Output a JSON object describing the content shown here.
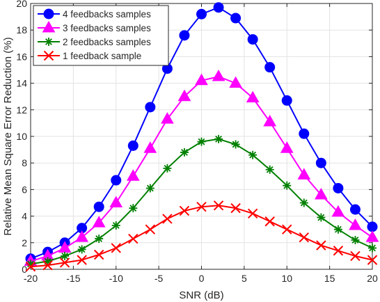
{
  "chart_data": {
    "type": "line",
    "title": "",
    "xlabel": "SNR (dB)",
    "ylabel": "Relative Mean Square Error Reduction (%)",
    "xlim": [
      -20,
      20
    ],
    "ylim": [
      0,
      20
    ],
    "xticks": [
      -20,
      -15,
      -10,
      -5,
      0,
      5,
      10,
      15,
      20
    ],
    "yticks": [
      0,
      2,
      4,
      6,
      8,
      10,
      12,
      14,
      16,
      18,
      20
    ],
    "grid": true,
    "legend_position": "top-left",
    "x": [
      -20,
      -18,
      -16,
      -14,
      -12,
      -10,
      -8,
      -6,
      -4,
      -2,
      0,
      2,
      4,
      6,
      8,
      10,
      12,
      14,
      16,
      18,
      20
    ],
    "series": [
      {
        "name": "4 feedbacks samples",
        "color": "#0000ff",
        "marker": "circle",
        "values": [
          0.8,
          1.3,
          2.0,
          3.1,
          4.7,
          6.7,
          9.3,
          12.2,
          15.1,
          17.6,
          19.2,
          19.7,
          18.9,
          17.3,
          15.2,
          12.7,
          10.2,
          8.0,
          6.1,
          4.5,
          3.2
        ]
      },
      {
        "name": "3 feedbacks samples",
        "color": "#ff00ff",
        "marker": "triangle",
        "values": [
          0.6,
          1.0,
          1.6,
          2.4,
          3.5,
          5.0,
          7.0,
          9.1,
          11.3,
          13.0,
          14.2,
          14.5,
          14.0,
          12.9,
          11.1,
          9.1,
          7.1,
          5.6,
          4.3,
          3.3,
          2.4
        ]
      },
      {
        "name": "2 feedbacks samples",
        "color": "#008000",
        "marker": "asterisk",
        "values": [
          0.4,
          0.6,
          1.0,
          1.5,
          2.3,
          3.3,
          4.6,
          6.1,
          7.6,
          8.8,
          9.6,
          9.8,
          9.4,
          8.6,
          7.5,
          6.3,
          5.0,
          3.9,
          3.0,
          2.2,
          1.6
        ]
      },
      {
        "name": "1 feedback sample",
        "color": "#ff0000",
        "marker": "cross",
        "values": [
          0.2,
          0.3,
          0.5,
          0.7,
          1.1,
          1.6,
          2.3,
          3.0,
          3.8,
          4.4,
          4.7,
          4.8,
          4.6,
          4.2,
          3.6,
          3.0,
          2.4,
          1.8,
          1.4,
          1.0,
          0.7
        ]
      }
    ]
  }
}
